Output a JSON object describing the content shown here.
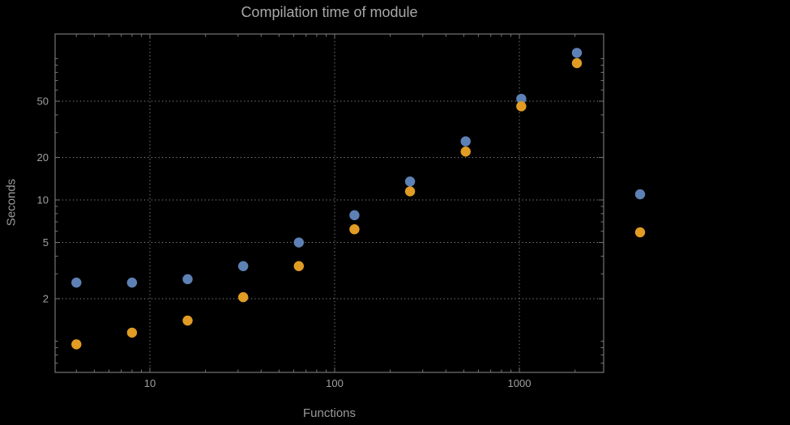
{
  "chart_data": {
    "type": "scatter",
    "title": "Compilation time of module",
    "xlabel": "Functions",
    "ylabel": "Seconds",
    "x_scale": "log",
    "y_scale": "log",
    "x_range": [
      3.1,
      2860
    ],
    "y_range": [
      0.6,
      150
    ],
    "x_ticks": [
      10,
      100,
      1000
    ],
    "y_ticks": [
      2,
      5,
      10,
      20,
      50
    ],
    "grid": "dotted",
    "legend_position": "right-outside",
    "x": [
      4,
      8,
      16,
      32,
      64,
      128,
      256,
      512,
      1024,
      2048
    ],
    "series": [
      {
        "name": "series-blue",
        "color": "#5e81b5",
        "values": [
          2.6,
          2.6,
          2.75,
          3.4,
          5.0,
          7.8,
          13.5,
          26,
          52,
          110
        ]
      },
      {
        "name": "series-orange",
        "color": "#e19c24",
        "values": [
          0.95,
          1.15,
          1.4,
          2.05,
          3.4,
          6.2,
          11.5,
          22,
          46,
          93
        ]
      }
    ],
    "legend_markers": [
      {
        "name": "legend-marker-blue",
        "color": "#5e81b5"
      },
      {
        "name": "legend-marker-orange",
        "color": "#e19c24"
      }
    ]
  },
  "colors": {
    "background": "#000000",
    "frame": "#757575",
    "grid": "#8c8c8c",
    "text": "#a0a0a0"
  }
}
